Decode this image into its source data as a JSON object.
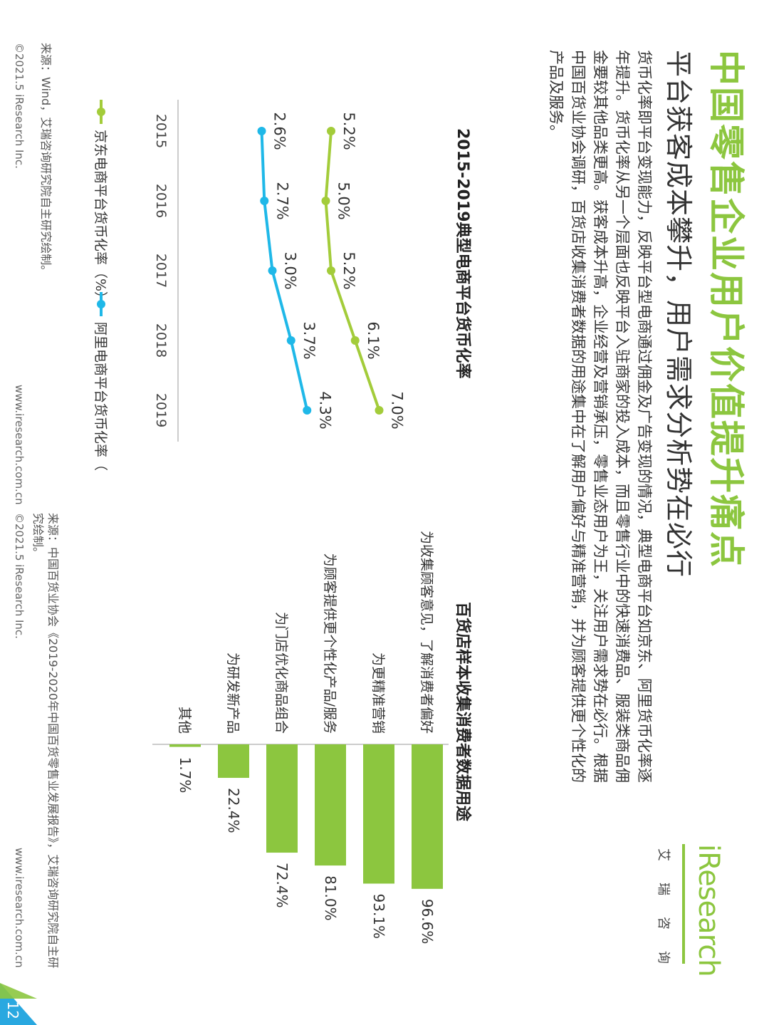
{
  "header": {
    "title": "中国零售企业用户价值提升痛点",
    "subtitle": "平台获客成本攀升，用户需求分析势在必行",
    "body": "货币化率即平台变现能力，反映平台型电商通过佣金及广告变现的情况，典型电商平台如京东、阿里货币化率逐年提升。货币化率从另一个层面也反映平台入驻商家的投入成本，而且零售行业中的快速消费品、服装类商品佣金要较其他品类更高。获客成本升高，企业经营及营销承压，零售业态用户为王，关注用户需求势在必行。根据中国百货业协会调研，百货店收集消费者数据的用途集中在了解用户偏好与精准营销，并为顾客提供更个性化的产品及服务。"
  },
  "logo": {
    "brand": "iResearch",
    "cn": "艾瑞咨询"
  },
  "colors": {
    "green": "#8cc63f",
    "blue": "#29a8e0",
    "text": "#333333"
  },
  "chart_data": [
    {
      "type": "line",
      "title": "2015-2019典型电商平台货币化率",
      "x": [
        "2015",
        "2016",
        "2017",
        "2018",
        "2019"
      ],
      "series": [
        {
          "name": "京东电商平台货币化率（%）",
          "values": [
            5.2,
            5.0,
            5.2,
            6.1,
            7.0
          ],
          "labels": [
            "5.2%",
            "5.0%",
            "5.2%",
            "6.1%",
            "7.0%"
          ],
          "color": "#a3cc3a"
        },
        {
          "name": "阿里电商平台货币化率（%）",
          "values": [
            2.6,
            2.7,
            3.0,
            3.7,
            4.3
          ],
          "labels": [
            "2.6%",
            "2.7%",
            "3.0%",
            "3.7%",
            "4.3%"
          ],
          "color": "#1fb8e8"
        }
      ],
      "ylim": [
        0,
        8
      ],
      "legend": "bottom"
    },
    {
      "type": "bar",
      "title": "百货店样本收集消费者数据用途",
      "categories": [
        "为收集顾客意见，了解消费者偏好",
        "为更精准营销",
        "为顾客提供更个性化产品/服务",
        "为门店优化商品组合",
        "为研发新产品",
        "其他"
      ],
      "values": [
        96.6,
        93.1,
        81.0,
        72.4,
        22.4,
        1.7
      ],
      "labels": [
        "96.6%",
        "93.1%",
        "81.0%",
        "72.4%",
        "22.4%",
        "1.7%"
      ],
      "color": "#8cc63f",
      "xlim": [
        0,
        100
      ]
    }
  ],
  "sources": {
    "left": "来源：Wind，艾瑞咨询研究院自主研究绘制。",
    "right": "来源：中国百货业协会《2019-2020年中国百货零售业发展报告》，艾瑞咨询研究院自主研究绘制。"
  },
  "footer": {
    "copyright": "©2021.5 iResearch Inc.",
    "site": "www.iresearch.com.cn",
    "page": "12"
  }
}
